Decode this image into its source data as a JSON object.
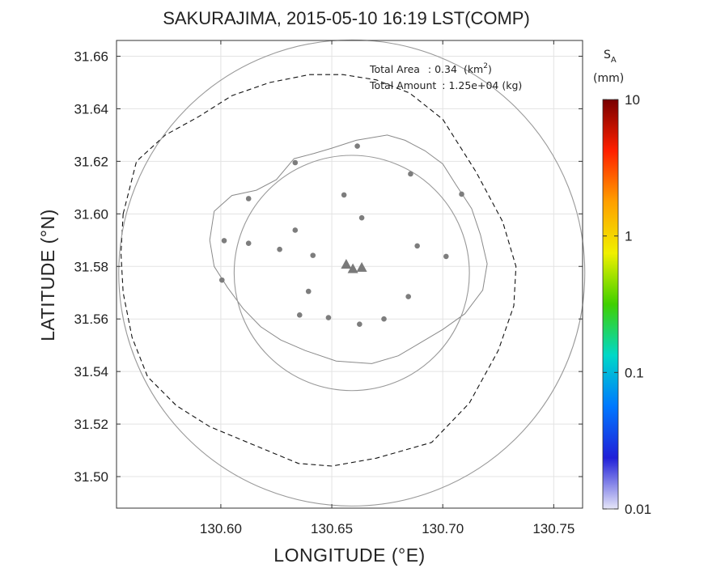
{
  "title": "SAKURAJIMA, 2015-05-10 16:19 LST(COMP)",
  "annotation": {
    "area_label": "Total Area",
    "area_value": ": 0.34",
    "area_unit": "(km",
    "area_unit_sup": "2",
    "area_unit_close": ")",
    "amount_label": "Total Amount",
    "amount_value": ": 1.25e+04 (kg)"
  },
  "colorbar": {
    "symbol": "S",
    "symbol_sub": "A",
    "unit": "(mm)",
    "scale": "log",
    "range": [
      0.01,
      10
    ],
    "ticks": [
      {
        "value": 10,
        "label": "10"
      },
      {
        "value": 1,
        "label": "1"
      },
      {
        "value": 0.1,
        "label": "0.1"
      },
      {
        "value": 0.01,
        "label": "0.01"
      }
    ],
    "colors": [
      "#e6e6f8",
      "#2020d8",
      "#0078ff",
      "#00d8c8",
      "#40d000",
      "#f0f000",
      "#ffa000",
      "#ff2000",
      "#780000"
    ]
  },
  "chart_data": {
    "type": "map",
    "xlabel": "LONGITUDE (°E)",
    "ylabel": "LATITUDE (°N)",
    "xlim": [
      130.553,
      130.763
    ],
    "ylim": [
      31.488,
      31.666
    ],
    "xticks": [
      {
        "value": 130.6,
        "label": "130.60"
      },
      {
        "value": 130.65,
        "label": "130.65"
      },
      {
        "value": 130.7,
        "label": "130.70"
      },
      {
        "value": 130.75,
        "label": "130.75"
      }
    ],
    "yticks": [
      {
        "value": 31.5,
        "label": "31.50"
      },
      {
        "value": 31.52,
        "label": "31.52"
      },
      {
        "value": 31.54,
        "label": "31.54"
      },
      {
        "value": 31.56,
        "label": "31.56"
      },
      {
        "value": 31.58,
        "label": "31.58"
      },
      {
        "value": 31.6,
        "label": "31.60"
      },
      {
        "value": 31.62,
        "label": "31.62"
      },
      {
        "value": 31.64,
        "label": "31.64"
      },
      {
        "value": 31.66,
        "label": "31.66"
      }
    ],
    "grid": true,
    "inner_circle": {
      "center": [
        130.659,
        31.5775
      ],
      "radius_deg_lon": 0.053
    },
    "outer_circle": {
      "center": [
        130.659,
        31.5775
      ],
      "radius_deg_lon": 0.105
    },
    "vents": [
      [
        130.6565,
        31.5807
      ],
      [
        130.6595,
        31.579
      ],
      [
        130.6635,
        31.5795
      ]
    ],
    "stations": [
      [
        130.6615,
        31.6258
      ],
      [
        130.6335,
        31.6195
      ],
      [
        130.6855,
        31.6152
      ],
      [
        130.7085,
        31.6075
      ],
      [
        130.6125,
        31.6058
      ],
      [
        130.6555,
        31.6072
      ],
      [
        130.6635,
        31.5985
      ],
      [
        130.6015,
        31.5898
      ],
      [
        130.6125,
        31.5888
      ],
      [
        130.6335,
        31.5938
      ],
      [
        130.6265,
        31.5865
      ],
      [
        130.6415,
        31.5842
      ],
      [
        130.6885,
        31.5878
      ],
      [
        130.7015,
        31.5838
      ],
      [
        130.6005,
        31.5748
      ],
      [
        130.6395,
        31.5705
      ],
      [
        130.6845,
        31.5685
      ],
      [
        130.6355,
        31.5615
      ],
      [
        130.6485,
        31.5605
      ],
      [
        130.6625,
        31.558
      ],
      [
        130.6735,
        31.56
      ]
    ],
    "coastline": [
      [
        130.597,
        31.601
      ],
      [
        130.605,
        31.607
      ],
      [
        130.616,
        31.609
      ],
      [
        130.625,
        31.613
      ],
      [
        130.633,
        31.621
      ],
      [
        130.642,
        31.623
      ],
      [
        130.65,
        31.625
      ],
      [
        130.661,
        31.628
      ],
      [
        130.675,
        31.63
      ],
      [
        130.683,
        31.628
      ],
      [
        130.692,
        31.624
      ],
      [
        130.7,
        31.619
      ],
      [
        130.706,
        31.611
      ],
      [
        130.713,
        31.602
      ],
      [
        130.717,
        31.592
      ],
      [
        130.72,
        31.581
      ],
      [
        130.718,
        31.571
      ],
      [
        130.71,
        31.562
      ],
      [
        130.7,
        31.556
      ],
      [
        130.69,
        31.551
      ],
      [
        130.68,
        31.546
      ],
      [
        130.668,
        31.543
      ],
      [
        130.652,
        31.544
      ],
      [
        130.638,
        31.548
      ],
      [
        130.627,
        31.552
      ],
      [
        130.618,
        31.557
      ],
      [
        130.61,
        31.564
      ],
      [
        130.603,
        31.572
      ],
      [
        130.597,
        31.58
      ],
      [
        130.595,
        31.59
      ],
      [
        130.597,
        31.601
      ]
    ],
    "dashed_contour": [
      [
        130.556,
        31.6
      ],
      [
        130.562,
        31.62
      ],
      [
        130.575,
        31.63
      ],
      [
        130.59,
        31.637
      ],
      [
        130.605,
        31.645
      ],
      [
        130.622,
        31.65
      ],
      [
        130.64,
        31.653
      ],
      [
        130.655,
        31.653
      ],
      [
        130.67,
        31.651
      ],
      [
        130.685,
        31.646
      ],
      [
        130.7,
        31.636
      ],
      [
        130.715,
        31.616
      ],
      [
        130.727,
        31.597
      ],
      [
        130.733,
        31.58
      ],
      [
        130.732,
        31.565
      ],
      [
        130.725,
        31.548
      ],
      [
        130.712,
        31.528
      ],
      [
        130.695,
        31.513
      ],
      [
        130.67,
        31.507
      ],
      [
        130.65,
        31.504
      ],
      [
        130.635,
        31.505
      ],
      [
        130.615,
        31.512
      ],
      [
        130.595,
        31.519
      ],
      [
        130.58,
        31.527
      ],
      [
        130.567,
        31.538
      ],
      [
        130.56,
        31.553
      ],
      [
        130.556,
        31.57
      ],
      [
        130.555,
        31.585
      ],
      [
        130.556,
        31.6
      ]
    ]
  }
}
